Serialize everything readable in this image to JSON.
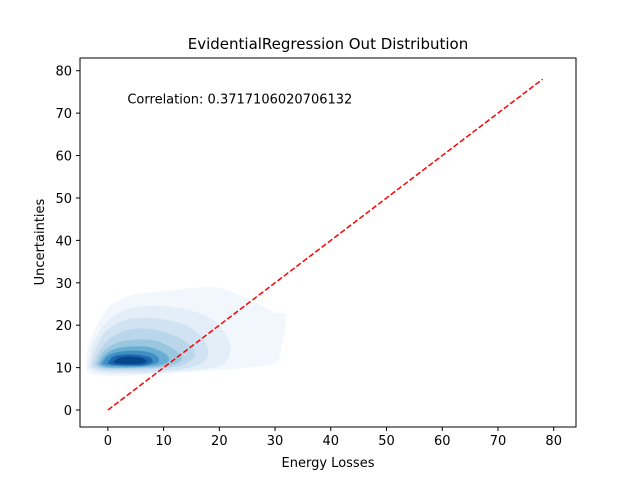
{
  "chart_data": {
    "type": "kde_contour",
    "title": "EvidentialRegression Out Distribution",
    "xlabel": "Energy Losses",
    "ylabel": "Uncertainties",
    "xlim": [
      -5,
      84
    ],
    "ylim": [
      -4,
      83
    ],
    "xticks": [
      0,
      10,
      20,
      30,
      40,
      50,
      60,
      70,
      80
    ],
    "yticks": [
      0,
      10,
      20,
      30,
      40,
      50,
      60,
      70,
      80
    ],
    "grid": false,
    "annotation": {
      "text": "Correlation: 0.3717106020706132",
      "x": 3.5,
      "y": 73.5
    },
    "reference_line": {
      "x": [
        0,
        78
      ],
      "y": [
        0,
        78
      ],
      "color": "#ff0000",
      "style": "dashed"
    },
    "density_contours": {
      "colormap": "Blues",
      "levels": [
        {
          "level": 1,
          "color": "#f2f7fd",
          "points": [
            [
              -4,
              11
            ],
            [
              -3,
              17
            ],
            [
              0,
              24
            ],
            [
              4,
              27
            ],
            [
              10,
              28
            ],
            [
              18,
              29
            ],
            [
              22,
              28
            ],
            [
              27,
              25
            ],
            [
              30,
              23
            ],
            [
              32,
              22
            ],
            [
              31,
              14
            ],
            [
              30,
              11
            ],
            [
              25,
              10
            ],
            [
              20,
              9.5
            ],
            [
              15,
              9
            ],
            [
              8,
              8.5
            ],
            [
              2,
              8
            ],
            [
              -3,
              8.5
            ]
          ]
        },
        {
          "level": 2,
          "color": "#e3eef9",
          "points": [
            [
              -3.5,
              11
            ],
            [
              -2.5,
              16
            ],
            [
              0,
              21
            ],
            [
              4,
              24
            ],
            [
              10,
              24.5
            ],
            [
              16,
              23
            ],
            [
              20,
              20
            ],
            [
              22,
              15
            ],
            [
              21,
              11
            ],
            [
              18,
              9.8
            ],
            [
              12,
              9
            ],
            [
              5,
              8.5
            ],
            [
              -1,
              8.7
            ],
            [
              -3,
              9.5
            ]
          ]
        },
        {
          "level": 3,
          "color": "#d1e2f3",
          "points": [
            [
              -3,
              11
            ],
            [
              -2,
              15
            ],
            [
              0,
              19
            ],
            [
              4,
              21.5
            ],
            [
              9,
              21.5
            ],
            [
              14,
              20
            ],
            [
              17,
              17
            ],
            [
              18,
              13
            ],
            [
              16,
              10.5
            ],
            [
              12,
              9.5
            ],
            [
              6,
              9
            ],
            [
              0,
              9.1
            ],
            [
              -2.5,
              9.8
            ]
          ]
        },
        {
          "level": 4,
          "color": "#bad6eb",
          "points": [
            [
              -2.5,
              11
            ],
            [
              -1.5,
              14
            ],
            [
              0.5,
              17
            ],
            [
              4,
              19
            ],
            [
              8,
              19
            ],
            [
              12,
              17.5
            ],
            [
              15,
              15
            ],
            [
              15.5,
              12.5
            ],
            [
              13,
              10.5
            ],
            [
              9,
              9.8
            ],
            [
              4,
              9.5
            ],
            [
              -0.5,
              9.6
            ],
            [
              -2.2,
              10.2
            ]
          ]
        },
        {
          "level": 5,
          "color": "#99c7e0",
          "points": [
            [
              -2,
              11
            ],
            [
              -1,
              13.5
            ],
            [
              1,
              15.5
            ],
            [
              4,
              16.5
            ],
            [
              8,
              16.5
            ],
            [
              11,
              15
            ],
            [
              13,
              13
            ],
            [
              13,
              11.5
            ],
            [
              10.5,
              10.3
            ],
            [
              6,
              9.9
            ],
            [
              2,
              9.8
            ],
            [
              -1,
              10
            ],
            [
              -1.8,
              10.5
            ]
          ]
        },
        {
          "level": 6,
          "color": "#6aaed6",
          "points": [
            [
              -1.5,
              11
            ],
            [
              -0.5,
              13
            ],
            [
              1.5,
              14.5
            ],
            [
              4.5,
              15
            ],
            [
              7.5,
              14.8
            ],
            [
              10,
              13.5
            ],
            [
              11,
              12
            ],
            [
              10,
              10.8
            ],
            [
              7,
              10.2
            ],
            [
              3,
              10
            ],
            [
              0,
              10.1
            ],
            [
              -1.2,
              10.5
            ]
          ]
        },
        {
          "level": 7,
          "color": "#3f8fc5",
          "points": [
            [
              -1,
              11
            ],
            [
              0,
              12.8
            ],
            [
              2,
              13.7
            ],
            [
              5,
              14
            ],
            [
              7.5,
              13.6
            ],
            [
              9,
              12.5
            ],
            [
              9,
              11.2
            ],
            [
              7,
              10.5
            ],
            [
              4,
              10.3
            ],
            [
              1,
              10.4
            ],
            [
              -0.5,
              10.7
            ]
          ]
        },
        {
          "level": 8,
          "color": "#1a68ae",
          "points": [
            [
              0,
              11.2
            ],
            [
              1,
              12.6
            ],
            [
              3,
              13.1
            ],
            [
              5.5,
              13
            ],
            [
              7.5,
              12.4
            ],
            [
              8,
              11.3
            ],
            [
              6.5,
              10.6
            ],
            [
              4,
              10.5
            ],
            [
              1.5,
              10.6
            ],
            [
              0.2,
              10.9
            ]
          ]
        },
        {
          "level": 9,
          "color": "#08468c",
          "points": [
            [
              1,
              11.3
            ],
            [
              2,
              12.3
            ],
            [
              4,
              12.6
            ],
            [
              6,
              12.3
            ],
            [
              7,
              11.5
            ],
            [
              6,
              10.9
            ],
            [
              4,
              10.8
            ],
            [
              2,
              10.9
            ],
            [
              1.2,
              11.1
            ]
          ]
        }
      ]
    }
  }
}
